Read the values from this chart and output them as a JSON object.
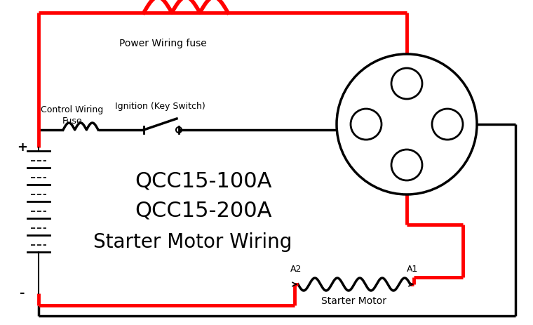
{
  "bg_color": "#ffffff",
  "red": "#ff0000",
  "black": "#000000",
  "label_main1": "QCC15-100A",
  "label_main2": "QCC15-200A",
  "label_main3": "Starter Motor Wiring",
  "label_power_fuse": "Power Wiring fuse",
  "label_control_fuse": "Control Wiring\nFuse",
  "label_ignition": "Ignition (Key Switch)",
  "label_starter": "Starter Motor",
  "label_A1": "A1",
  "label_A2": "A2",
  "label_plus": "+",
  "label_minus": "-",
  "lw_red": 3.5,
  "lw_black": 2.5,
  "lw_black_thin": 1.5
}
